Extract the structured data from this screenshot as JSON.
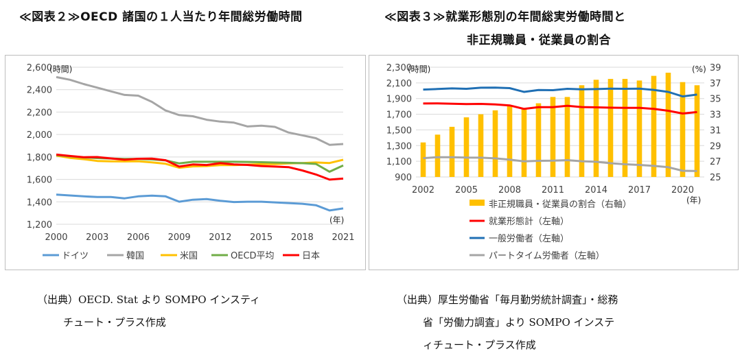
{
  "headings": {
    "fig2": "≪図表２≫OECD 諸国の１人当たり年間総労働時間",
    "fig3_line1": "≪図表３≫就業形態別の年間総実労働時間と",
    "fig3_line2": "非正規職員・従業員の割合"
  },
  "sources": {
    "fig2_line1": "（出典）OECD. Stat より SOMPO インスティ",
    "fig2_line2": "チュート・プラス作成",
    "fig3_line1": "（出典）厚生労働省「毎月勤労統計調査」・総務",
    "fig3_line2": "省「労働力調査」より SOMPO インステ",
    "fig3_line3": "ィチュート・プラス作成"
  },
  "chart_data": [
    {
      "type": "line",
      "ylabel": "(時間)",
      "xlabel": "(年)",
      "ylim": [
        1200,
        2600
      ],
      "yticks": [
        1200,
        1400,
        1600,
        1800,
        2000,
        2200,
        2400,
        2600
      ],
      "xticks": [
        2000,
        2003,
        2006,
        2009,
        2012,
        2015,
        2018,
        2021
      ],
      "x": [
        2000,
        2001,
        2002,
        2003,
        2004,
        2005,
        2006,
        2007,
        2008,
        2009,
        2010,
        2011,
        2012,
        2013,
        2014,
        2015,
        2016,
        2017,
        2018,
        2019,
        2020,
        2021
      ],
      "grid": true,
      "legend_position": "bottom",
      "series": [
        {
          "name": "ドイツ",
          "color": "#5b9bd5",
          "values": [
            1464,
            1457,
            1449,
            1443,
            1443,
            1431,
            1449,
            1455,
            1449,
            1401,
            1419,
            1425,
            1410,
            1398,
            1401,
            1401,
            1395,
            1389,
            1383,
            1370,
            1323,
            1341
          ]
        },
        {
          "name": "韓国",
          "color": "#a5a5a5",
          "values": [
            2512,
            2488,
            2450,
            2418,
            2385,
            2353,
            2346,
            2291,
            2214,
            2173,
            2163,
            2132,
            2115,
            2106,
            2072,
            2079,
            2068,
            2018,
            1993,
            1967,
            1908,
            1915
          ]
        },
        {
          "name": "米国",
          "color": "#ffc000",
          "values": [
            1812,
            1792,
            1780,
            1764,
            1761,
            1760,
            1762,
            1752,
            1739,
            1704,
            1716,
            1719,
            1727,
            1727,
            1731,
            1737,
            1737,
            1743,
            1746,
            1751,
            1746,
            1775
          ]
        },
        {
          "name": "OECD平均",
          "color": "#70ad47",
          "values": [
            1817,
            1806,
            1796,
            1790,
            1786,
            1782,
            1782,
            1778,
            1769,
            1743,
            1757,
            1757,
            1757,
            1757,
            1756,
            1753,
            1750,
            1748,
            1745,
            1738,
            1668,
            1724
          ]
        },
        {
          "name": "日本",
          "color": "#ff0000",
          "values": [
            1821,
            1809,
            1798,
            1799,
            1787,
            1775,
            1784,
            1785,
            1771,
            1714,
            1733,
            1728,
            1745,
            1734,
            1729,
            1719,
            1714,
            1709,
            1680,
            1644,
            1598,
            1607
          ]
        }
      ]
    },
    {
      "type": "bar+line",
      "ylabel": "(時間)",
      "y2label": "(%)",
      "xlabel": "(年)",
      "ylim": [
        900,
        2300
      ],
      "y2lim": [
        25,
        39
      ],
      "yticks": [
        900,
        1100,
        1300,
        1500,
        1700,
        1900,
        2100,
        2300
      ],
      "y2ticks": [
        25,
        27,
        29,
        31,
        33,
        35,
        37,
        39
      ],
      "xticks": [
        2002,
        2005,
        2008,
        2011,
        2014,
        2017,
        2020
      ],
      "x": [
        2002,
        2003,
        2004,
        2005,
        2006,
        2007,
        2008,
        2009,
        2010,
        2011,
        2012,
        2013,
        2014,
        2015,
        2016,
        2017,
        2018,
        2019,
        2020,
        2021
      ],
      "grid": true,
      "legend_position": "bottom",
      "bars": {
        "name": "非正規職員・従業員の割合（右軸）",
        "color": "#ffc000",
        "axis": "right",
        "values": [
          29.4,
          30.4,
          31.4,
          32.6,
          33.0,
          33.5,
          34.1,
          33.7,
          34.4,
          35.2,
          35.2,
          36.7,
          37.4,
          37.5,
          37.5,
          37.3,
          37.9,
          38.3,
          37.1,
          36.7
        ]
      },
      "series": [
        {
          "name": "就業形態計（左軸）",
          "color": "#ff0000",
          "axis": "left",
          "values": [
            1837,
            1838,
            1834,
            1829,
            1832,
            1826,
            1813,
            1768,
            1790,
            1790,
            1808,
            1792,
            1788,
            1784,
            1782,
            1781,
            1768,
            1744,
            1709,
            1728
          ]
        },
        {
          "name": "一般労働者（左軸）",
          "color": "#1f6fb4",
          "axis": "left",
          "values": [
            2015,
            2022,
            2030,
            2024,
            2038,
            2039,
            2033,
            1985,
            2009,
            2007,
            2024,
            2018,
            2021,
            2026,
            2024,
            2026,
            2010,
            1985,
            1927,
            1951
          ]
        },
        {
          "name": "パートタイム労働者（左軸）",
          "color": "#a5a5a5",
          "axis": "left",
          "values": [
            1140,
            1152,
            1152,
            1147,
            1146,
            1137,
            1121,
            1099,
            1106,
            1107,
            1114,
            1100,
            1093,
            1075,
            1062,
            1053,
            1041,
            1024,
            979,
            975
          ]
        }
      ]
    }
  ]
}
